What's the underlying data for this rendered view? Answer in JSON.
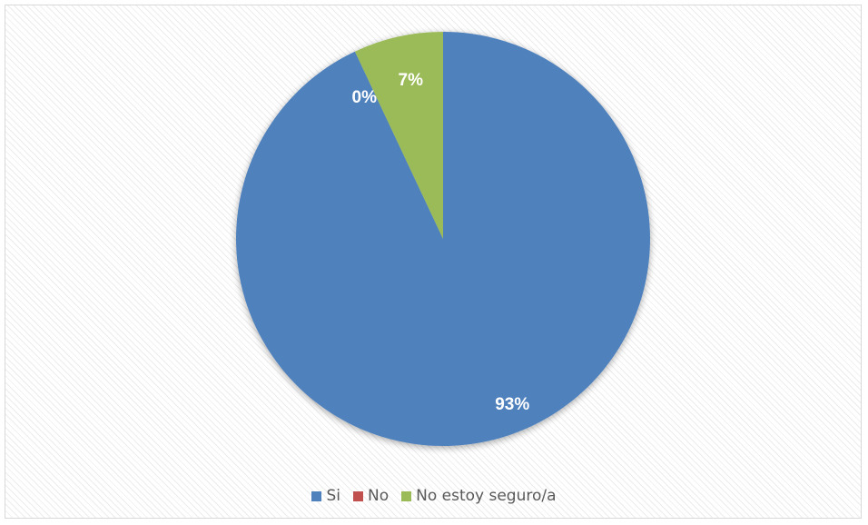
{
  "chart_data": {
    "type": "pie",
    "title": "",
    "categories": [
      "Si",
      "No",
      "No estoy seguro/a"
    ],
    "values": [
      93,
      0,
      7
    ],
    "data_labels": [
      "93%",
      "0%",
      "7%"
    ],
    "colors": [
      "#4f81bd",
      "#c0504d",
      "#9bbb59"
    ],
    "start_angle": "12 o'clock",
    "direction": "clockwise",
    "legend": "bottom"
  }
}
